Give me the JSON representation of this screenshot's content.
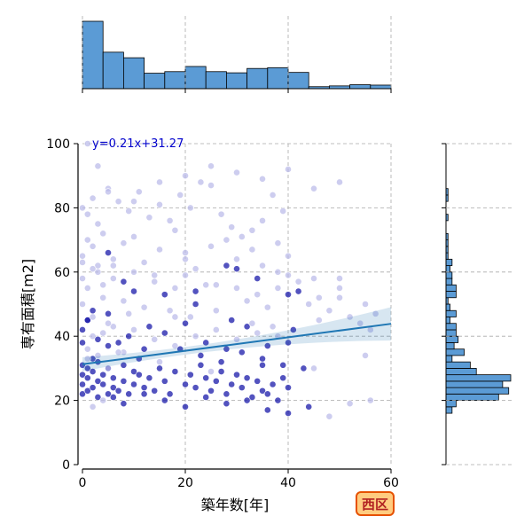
{
  "chart_data": {
    "type": "scatter",
    "x_label": "築年数[年]",
    "y_label": "専有面積[m2]",
    "x_range": [
      0,
      60
    ],
    "y_range": [
      0,
      100
    ],
    "x_ticks": [
      0,
      20,
      40,
      60
    ],
    "y_ticks": [
      0,
      20,
      40,
      60,
      80,
      100
    ],
    "grid": true,
    "regression": {
      "slope": 0.21,
      "intercept": 31.27,
      "label": "y=0.21x+31.27",
      "line_color": "#1f77b4",
      "x_range": [
        0,
        60
      ]
    },
    "badge": {
      "text": "西区",
      "fill": "#ffcc80",
      "border": "#e65100",
      "text_color": "#b22222"
    },
    "point_color_dark": "#1a1aaa",
    "point_color_light": "#b8b8e8",
    "hist_color": "#5b9bd5",
    "top_histogram": {
      "bin_edges": [
        0,
        4,
        8,
        12,
        16,
        20,
        24,
        28,
        32,
        36,
        40,
        44,
        48,
        52,
        56,
        60
      ],
      "counts": [
        170,
        92,
        78,
        39,
        43,
        56,
        43,
        40,
        51,
        53,
        41,
        5,
        7,
        10,
        9
      ]
    },
    "right_histogram": {
      "bin_edges": [
        16,
        18,
        20,
        22,
        24,
        26,
        28,
        30,
        32,
        34,
        36,
        38,
        40,
        42,
        44,
        46,
        48,
        50,
        52,
        54,
        56,
        58,
        60,
        62,
        64,
        66,
        68,
        70,
        72,
        74,
        76,
        78,
        80,
        82,
        84,
        86
      ],
      "counts": [
        3,
        5,
        26,
        31,
        28,
        32,
        15,
        12,
        3,
        9,
        4,
        6,
        5,
        5,
        2,
        5,
        2,
        1,
        5,
        5,
        3,
        3,
        2,
        3,
        1,
        1,
        1,
        1,
        0,
        0,
        1,
        0,
        0,
        1,
        1
      ]
    },
    "series": [
      {
        "name": "",
        "x": [
          0,
          0,
          0,
          0,
          1,
          1,
          1,
          2,
          2,
          2,
          3,
          3,
          3,
          4,
          4,
          5,
          5,
          6,
          6,
          7,
          8,
          8,
          9,
          10,
          10,
          11,
          12,
          13,
          14,
          15,
          16,
          17,
          18,
          20,
          21,
          22,
          23,
          24,
          25,
          26,
          27,
          28,
          29,
          30,
          31,
          32,
          33,
          34,
          35,
          36,
          37,
          38,
          39,
          40,
          0,
          0,
          1,
          1,
          2,
          3,
          4,
          5,
          6,
          7,
          8,
          9,
          10,
          12,
          14,
          16,
          18,
          20,
          22,
          24,
          26,
          28,
          30,
          32,
          34,
          36,
          38,
          40,
          0,
          1,
          2,
          3,
          4,
          5,
          6,
          8,
          10,
          12,
          14,
          16,
          18,
          20,
          22,
          24,
          26,
          28,
          30,
          32,
          34,
          36,
          38,
          40,
          42,
          44,
          46,
          48,
          50,
          52,
          54,
          56,
          57,
          0,
          1,
          2,
          3,
          4,
          5,
          6,
          8,
          10,
          12,
          15,
          18,
          20,
          22,
          25,
          28,
          30,
          33,
          35,
          38,
          40,
          45,
          50,
          55,
          0,
          1,
          2,
          3,
          5,
          7,
          9,
          11,
          13,
          15,
          17,
          19,
          21,
          23,
          25,
          27,
          29,
          31,
          33,
          35,
          37,
          39,
          1,
          3,
          5,
          10,
          15,
          20,
          25,
          30,
          35,
          40,
          45,
          50,
          2,
          4,
          6,
          8,
          12,
          16,
          20,
          24,
          28,
          32,
          36,
          40,
          44,
          48,
          52,
          56,
          3,
          7,
          11,
          19,
          23,
          27,
          31,
          35,
          39,
          43,
          1,
          2,
          5,
          9,
          13,
          17,
          21,
          29,
          33,
          37,
          41,
          0,
          4,
          8,
          14,
          18,
          22,
          26,
          34,
          38,
          42,
          46,
          0,
          2,
          6,
          10,
          20,
          30,
          40,
          50,
          1,
          5,
          15,
          25,
          35,
          45,
          55
        ],
        "y": [
          22,
          25,
          28,
          31,
          23,
          27,
          30,
          24,
          29,
          33,
          21,
          26,
          32,
          25,
          28,
          22,
          30,
          24,
          27,
          23,
          26,
          31,
          22,
          25,
          29,
          28,
          24,
          27,
          23,
          30,
          26,
          22,
          29,
          25,
          28,
          24,
          31,
          27,
          23,
          26,
          29,
          22,
          25,
          28,
          24,
          27,
          21,
          26,
          23,
          22,
          25,
          20,
          27,
          24,
          38,
          42,
          36,
          45,
          40,
          39,
          41,
          37,
          43,
          38,
          35,
          40,
          42,
          36,
          39,
          41,
          37,
          44,
          40,
          38,
          42,
          36,
          39,
          43,
          41,
          37,
          40,
          38,
          50,
          55,
          48,
          60,
          52,
          47,
          58,
          51,
          54,
          49,
          57,
          53,
          46,
          59,
          50,
          56,
          48,
          62,
          55,
          51,
          58,
          49,
          60,
          53,
          57,
          50,
          45,
          48,
          52,
          46,
          44,
          42,
          47,
          65,
          70,
          68,
          62,
          72,
          66,
          64,
          69,
          71,
          63,
          67,
          73,
          66,
          61,
          68,
          70,
          64,
          67,
          62,
          69,
          65,
          58,
          55,
          50,
          80,
          78,
          83,
          75,
          86,
          82,
          79,
          85,
          77,
          81,
          76,
          84,
          80,
          88,
          93,
          78,
          74,
          71,
          73,
          76,
          84,
          79,
          100,
          93,
          85,
          82,
          88,
          90,
          87,
          91,
          89,
          92,
          86,
          88,
          18,
          20,
          21,
          19,
          22,
          20,
          18,
          21,
          19,
          20,
          17,
          16,
          18,
          15,
          19,
          20,
          34,
          35,
          33,
          36,
          34,
          32,
          35,
          33,
          31,
          30,
          45,
          46,
          44,
          47,
          43,
          48,
          46,
          45,
          44,
          43,
          42,
          58,
          56,
          57,
          59,
          55,
          54,
          56,
          53,
          55,
          54,
          52,
          63,
          61,
          62,
          60,
          64,
          61,
          59,
          58,
          33,
          30,
          32,
          29,
          31,
          30,
          34
        ],
        "shade": [
          1,
          1,
          1,
          1,
          1,
          1,
          1,
          1,
          1,
          1,
          1,
          1,
          1,
          1,
          1,
          1,
          1,
          1,
          1,
          1,
          1,
          1,
          1,
          1,
          1,
          1,
          1,
          1,
          1,
          1,
          1,
          1,
          1,
          1,
          1,
          1,
          1,
          1,
          1,
          1,
          1,
          1,
          1,
          1,
          1,
          1,
          1,
          1,
          1,
          1,
          1,
          1,
          1,
          1,
          1,
          1,
          0,
          1,
          0,
          1,
          0,
          1,
          0,
          1,
          0,
          1,
          0,
          1,
          0,
          1,
          0,
          1,
          0,
          1,
          0,
          1,
          0,
          1,
          0,
          1,
          0,
          1,
          0,
          0,
          1,
          0,
          0,
          1,
          0,
          0,
          1,
          0,
          0,
          1,
          0,
          0,
          1,
          0,
          0,
          1,
          0,
          0,
          1,
          0,
          0,
          1,
          0,
          0,
          0,
          0,
          0,
          0,
          0,
          0,
          0,
          0,
          0,
          0,
          0,
          0,
          1,
          0,
          0,
          0,
          0,
          0,
          0,
          0,
          0,
          0,
          0,
          0,
          0,
          0,
          0,
          0,
          0,
          0,
          0,
          0,
          0,
          0,
          0,
          0,
          0,
          0,
          0,
          0,
          0,
          0,
          0,
          0,
          0,
          0,
          0,
          0,
          0,
          0,
          0,
          0,
          0,
          0,
          0,
          0,
          0,
          0,
          0,
          0,
          0,
          0,
          0,
          0,
          0,
          0,
          0,
          1,
          1,
          1,
          1,
          1,
          1,
          1,
          1,
          1,
          1,
          1,
          0,
          0,
          0,
          0,
          0,
          1,
          1,
          1,
          1,
          1,
          1,
          1,
          1,
          1,
          0,
          0,
          0,
          1,
          0,
          0,
          1,
          0,
          0,
          1,
          0,
          0,
          1,
          0,
          0,
          1,
          0,
          0,
          0,
          1,
          0,
          0,
          0,
          0,
          0,
          0,
          1,
          0,
          0,
          0,
          0,
          0,
          0,
          1,
          0,
          0,
          0,
          0,
          0,
          0,
          0
        ]
      }
    ]
  }
}
